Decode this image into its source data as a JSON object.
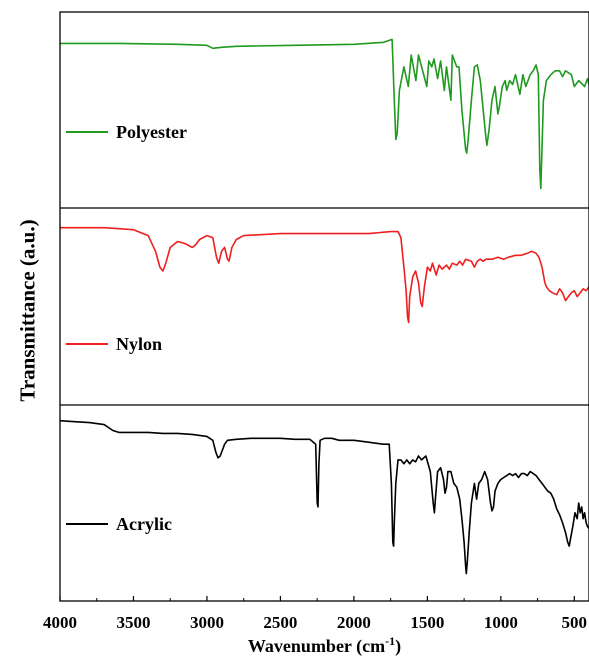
{
  "chart_data": {
    "type": "line",
    "ylabel": "Transmittance (a.u.)",
    "xlabel": "Wavenumber (cm",
    "xlabel_sup": "-1",
    "xlabel_close": ")",
    "x_ticks": [
      "4000",
      "3500",
      "3000",
      "2500",
      "2000",
      "1500",
      "1000",
      "500"
    ],
    "xlim": [
      4000,
      400
    ],
    "x_reversed": true,
    "grid": false,
    "panels": [
      {
        "name": "Polyester",
        "color": "#1f9a1f",
        "points": [
          [
            4000,
            0.84
          ],
          [
            3600,
            0.84
          ],
          [
            3200,
            0.835
          ],
          [
            3000,
            0.83
          ],
          [
            2960,
            0.815
          ],
          [
            2900,
            0.82
          ],
          [
            2800,
            0.825
          ],
          [
            2400,
            0.83
          ],
          [
            2000,
            0.835
          ],
          [
            1800,
            0.845
          ],
          [
            1740,
            0.86
          ],
          [
            1725,
            0.55
          ],
          [
            1715,
            0.35
          ],
          [
            1705,
            0.38
          ],
          [
            1690,
            0.6
          ],
          [
            1660,
            0.72
          ],
          [
            1630,
            0.62
          ],
          [
            1610,
            0.78
          ],
          [
            1578,
            0.65
          ],
          [
            1560,
            0.78
          ],
          [
            1504,
            0.62
          ],
          [
            1490,
            0.75
          ],
          [
            1470,
            0.72
          ],
          [
            1455,
            0.76
          ],
          [
            1430,
            0.66
          ],
          [
            1410,
            0.75
          ],
          [
            1385,
            0.6
          ],
          [
            1370,
            0.72
          ],
          [
            1340,
            0.55
          ],
          [
            1330,
            0.78
          ],
          [
            1300,
            0.72
          ],
          [
            1285,
            0.72
          ],
          [
            1265,
            0.5
          ],
          [
            1240,
            0.3
          ],
          [
            1232,
            0.28
          ],
          [
            1222,
            0.35
          ],
          [
            1200,
            0.55
          ],
          [
            1180,
            0.72
          ],
          [
            1160,
            0.73
          ],
          [
            1140,
            0.65
          ],
          [
            1120,
            0.5
          ],
          [
            1100,
            0.35
          ],
          [
            1095,
            0.32
          ],
          [
            1080,
            0.4
          ],
          [
            1060,
            0.55
          ],
          [
            1040,
            0.62
          ],
          [
            1020,
            0.48
          ],
          [
            1010,
            0.52
          ],
          [
            990,
            0.62
          ],
          [
            970,
            0.65
          ],
          [
            960,
            0.6
          ],
          [
            940,
            0.65
          ],
          [
            920,
            0.63
          ],
          [
            900,
            0.68
          ],
          [
            870,
            0.58
          ],
          [
            850,
            0.68
          ],
          [
            830,
            0.62
          ],
          [
            800,
            0.68
          ],
          [
            780,
            0.7
          ],
          [
            760,
            0.73
          ],
          [
            745,
            0.68
          ],
          [
            735,
            0.2
          ],
          [
            728,
            0.1
          ],
          [
            722,
            0.25
          ],
          [
            710,
            0.55
          ],
          [
            690,
            0.65
          ],
          [
            660,
            0.68
          ],
          [
            630,
            0.7
          ],
          [
            600,
            0.7
          ],
          [
            580,
            0.67
          ],
          [
            560,
            0.7
          ],
          [
            520,
            0.68
          ],
          [
            500,
            0.62
          ],
          [
            470,
            0.65
          ],
          [
            430,
            0.62
          ],
          [
            410,
            0.66
          ],
          [
            400,
            0.63
          ]
        ]
      },
      {
        "name": "Nylon",
        "color": "#ef1f1f",
        "points": [
          [
            4000,
            0.9
          ],
          [
            3700,
            0.9
          ],
          [
            3500,
            0.89
          ],
          [
            3400,
            0.86
          ],
          [
            3350,
            0.78
          ],
          [
            3320,
            0.7
          ],
          [
            3300,
            0.68
          ],
          [
            3280,
            0.72
          ],
          [
            3250,
            0.8
          ],
          [
            3200,
            0.83
          ],
          [
            3150,
            0.82
          ],
          [
            3100,
            0.8
          ],
          [
            3080,
            0.81
          ],
          [
            3050,
            0.84
          ],
          [
            3000,
            0.86
          ],
          [
            2960,
            0.85
          ],
          [
            2935,
            0.75
          ],
          [
            2920,
            0.72
          ],
          [
            2900,
            0.78
          ],
          [
            2880,
            0.8
          ],
          [
            2860,
            0.74
          ],
          [
            2850,
            0.73
          ],
          [
            2830,
            0.8
          ],
          [
            2800,
            0.84
          ],
          [
            2750,
            0.86
          ],
          [
            2500,
            0.87
          ],
          [
            2200,
            0.87
          ],
          [
            1900,
            0.87
          ],
          [
            1750,
            0.88
          ],
          [
            1700,
            0.88
          ],
          [
            1680,
            0.85
          ],
          [
            1660,
            0.7
          ],
          [
            1645,
            0.58
          ],
          [
            1635,
            0.45
          ],
          [
            1628,
            0.42
          ],
          [
            1620,
            0.55
          ],
          [
            1600,
            0.65
          ],
          [
            1580,
            0.68
          ],
          [
            1560,
            0.62
          ],
          [
            1545,
            0.52
          ],
          [
            1535,
            0.5
          ],
          [
            1520,
            0.6
          ],
          [
            1500,
            0.7
          ],
          [
            1480,
            0.68
          ],
          [
            1465,
            0.72
          ],
          [
            1440,
            0.66
          ],
          [
            1420,
            0.71
          ],
          [
            1400,
            0.69
          ],
          [
            1370,
            0.71
          ],
          [
            1350,
            0.69
          ],
          [
            1330,
            0.72
          ],
          [
            1300,
            0.71
          ],
          [
            1280,
            0.73
          ],
          [
            1260,
            0.71
          ],
          [
            1240,
            0.74
          ],
          [
            1200,
            0.73
          ],
          [
            1180,
            0.7
          ],
          [
            1160,
            0.73
          ],
          [
            1140,
            0.74
          ],
          [
            1120,
            0.73
          ],
          [
            1100,
            0.74
          ],
          [
            1060,
            0.74
          ],
          [
            1020,
            0.75
          ],
          [
            980,
            0.74
          ],
          [
            950,
            0.75
          ],
          [
            900,
            0.76
          ],
          [
            860,
            0.76
          ],
          [
            820,
            0.77
          ],
          [
            790,
            0.78
          ],
          [
            760,
            0.77
          ],
          [
            740,
            0.75
          ],
          [
            720,
            0.7
          ],
          [
            700,
            0.62
          ],
          [
            690,
            0.6
          ],
          [
            670,
            0.58
          ],
          [
            650,
            0.57
          ],
          [
            620,
            0.56
          ],
          [
            600,
            0.59
          ],
          [
            580,
            0.57
          ],
          [
            560,
            0.53
          ],
          [
            540,
            0.55
          ],
          [
            520,
            0.57
          ],
          [
            500,
            0.58
          ],
          [
            480,
            0.55
          ],
          [
            460,
            0.57
          ],
          [
            440,
            0.59
          ],
          [
            420,
            0.58
          ],
          [
            400,
            0.6
          ]
        ]
      },
      {
        "name": "Acrylic",
        "color": "#000000",
        "points": [
          [
            4000,
            0.92
          ],
          [
            3900,
            0.915
          ],
          [
            3800,
            0.91
          ],
          [
            3700,
            0.9
          ],
          [
            3640,
            0.87
          ],
          [
            3600,
            0.86
          ],
          [
            3500,
            0.86
          ],
          [
            3400,
            0.86
          ],
          [
            3300,
            0.855
          ],
          [
            3200,
            0.855
          ],
          [
            3100,
            0.85
          ],
          [
            3050,
            0.845
          ],
          [
            3000,
            0.84
          ],
          [
            2960,
            0.82
          ],
          [
            2940,
            0.76
          ],
          [
            2925,
            0.73
          ],
          [
            2910,
            0.74
          ],
          [
            2880,
            0.8
          ],
          [
            2860,
            0.82
          ],
          [
            2800,
            0.825
          ],
          [
            2700,
            0.83
          ],
          [
            2600,
            0.83
          ],
          [
            2500,
            0.83
          ],
          [
            2400,
            0.825
          ],
          [
            2300,
            0.825
          ],
          [
            2260,
            0.8
          ],
          [
            2250,
            0.5
          ],
          [
            2244,
            0.48
          ],
          [
            2238,
            0.7
          ],
          [
            2230,
            0.82
          ],
          [
            2200,
            0.83
          ],
          [
            2150,
            0.83
          ],
          [
            2100,
            0.82
          ],
          [
            2000,
            0.82
          ],
          [
            1900,
            0.81
          ],
          [
            1800,
            0.8
          ],
          [
            1760,
            0.8
          ],
          [
            1745,
            0.6
          ],
          [
            1735,
            0.3
          ],
          [
            1730,
            0.28
          ],
          [
            1725,
            0.4
          ],
          [
            1715,
            0.6
          ],
          [
            1700,
            0.72
          ],
          [
            1680,
            0.72
          ],
          [
            1660,
            0.7
          ],
          [
            1640,
            0.72
          ],
          [
            1620,
            0.7
          ],
          [
            1600,
            0.72
          ],
          [
            1580,
            0.71
          ],
          [
            1560,
            0.74
          ],
          [
            1540,
            0.72
          ],
          [
            1510,
            0.74
          ],
          [
            1480,
            0.66
          ],
          [
            1460,
            0.5
          ],
          [
            1452,
            0.45
          ],
          [
            1445,
            0.52
          ],
          [
            1430,
            0.66
          ],
          [
            1410,
            0.68
          ],
          [
            1390,
            0.62
          ],
          [
            1380,
            0.55
          ],
          [
            1370,
            0.58
          ],
          [
            1360,
            0.66
          ],
          [
            1340,
            0.66
          ],
          [
            1320,
            0.6
          ],
          [
            1300,
            0.58
          ],
          [
            1280,
            0.52
          ],
          [
            1265,
            0.42
          ],
          [
            1250,
            0.3
          ],
          [
            1240,
            0.18
          ],
          [
            1235,
            0.14
          ],
          [
            1228,
            0.2
          ],
          [
            1215,
            0.35
          ],
          [
            1200,
            0.5
          ],
          [
            1180,
            0.6
          ],
          [
            1165,
            0.52
          ],
          [
            1150,
            0.6
          ],
          [
            1130,
            0.62
          ],
          [
            1110,
            0.66
          ],
          [
            1090,
            0.62
          ],
          [
            1070,
            0.5
          ],
          [
            1060,
            0.46
          ],
          [
            1050,
            0.48
          ],
          [
            1040,
            0.56
          ],
          [
            1020,
            0.6
          ],
          [
            1000,
            0.62
          ],
          [
            980,
            0.63
          ],
          [
            960,
            0.64
          ],
          [
            940,
            0.65
          ],
          [
            920,
            0.64
          ],
          [
            900,
            0.65
          ],
          [
            880,
            0.63
          ],
          [
            860,
            0.65
          ],
          [
            840,
            0.65
          ],
          [
            820,
            0.64
          ],
          [
            800,
            0.66
          ],
          [
            780,
            0.65
          ],
          [
            760,
            0.64
          ],
          [
            740,
            0.62
          ],
          [
            720,
            0.6
          ],
          [
            700,
            0.58
          ],
          [
            680,
            0.56
          ],
          [
            660,
            0.55
          ],
          [
            640,
            0.52
          ],
          [
            620,
            0.47
          ],
          [
            600,
            0.44
          ],
          [
            580,
            0.4
          ],
          [
            560,
            0.35
          ],
          [
            545,
            0.3
          ],
          [
            535,
            0.28
          ],
          [
            525,
            0.32
          ],
          [
            510,
            0.38
          ],
          [
            495,
            0.45
          ],
          [
            480,
            0.42
          ],
          [
            470,
            0.5
          ],
          [
            460,
            0.45
          ],
          [
            450,
            0.48
          ],
          [
            440,
            0.42
          ],
          [
            430,
            0.45
          ],
          [
            420,
            0.4
          ],
          [
            410,
            0.38
          ],
          [
            400,
            0.37
          ]
        ]
      }
    ]
  }
}
